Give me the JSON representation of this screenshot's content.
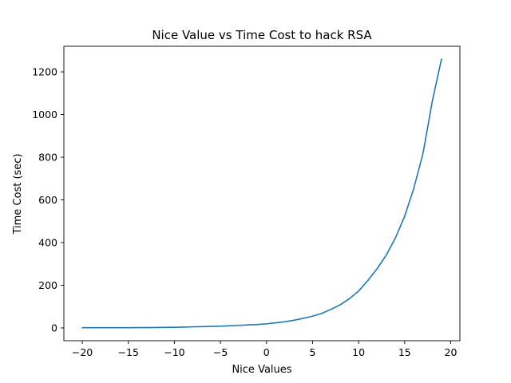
{
  "chart_data": {
    "type": "line",
    "title": "Nice Value vs Time Cost to hack RSA",
    "xlabel": "Nice Values",
    "ylabel": "Time Cost (sec)",
    "xlim": [
      -22,
      21
    ],
    "ylim": [
      -60,
      1320
    ],
    "xticks": [
      -20,
      -15,
      -10,
      -5,
      0,
      5,
      10,
      15,
      20
    ],
    "xtick_labels": [
      "−20",
      "−15",
      "−10",
      "−5",
      "0",
      "5",
      "10",
      "15",
      "20"
    ],
    "yticks": [
      0,
      200,
      400,
      600,
      800,
      1000,
      1200
    ],
    "ytick_labels": [
      "0",
      "200",
      "400",
      "600",
      "800",
      "1000",
      "1200"
    ],
    "grid": false,
    "legend": null,
    "line_color": "#1f77b4",
    "series": [
      {
        "x": [
          -20,
          -19,
          -18,
          -17,
          -16,
          -15,
          -14,
          -13,
          -12,
          -11,
          -10,
          -9,
          -8,
          -7,
          -6,
          -5,
          -4,
          -3,
          -2,
          -1,
          0,
          1,
          2,
          3,
          4,
          5,
          6,
          7,
          8,
          9,
          10,
          11,
          12,
          13,
          14,
          15,
          16,
          17,
          18,
          19
        ],
        "values": [
          1,
          1,
          1,
          1,
          1,
          1,
          1.5,
          1.5,
          2,
          2.5,
          3,
          4,
          5,
          6,
          7,
          8,
          10,
          12,
          14,
          16,
          19,
          24,
          29,
          36,
          45,
          55,
          68,
          87,
          108,
          137,
          173,
          222,
          277,
          341,
          422,
          523,
          655,
          819,
          1062,
          1260
        ]
      }
    ]
  }
}
